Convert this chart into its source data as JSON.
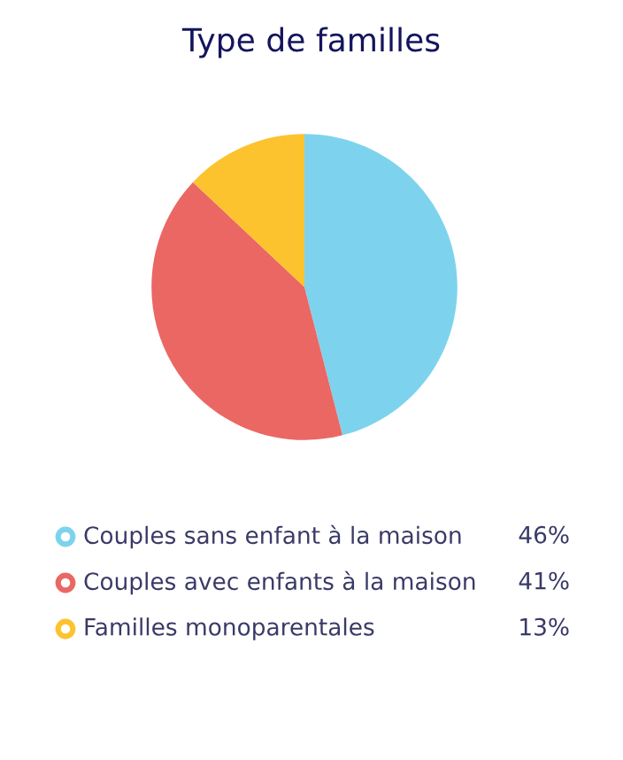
{
  "chart_data": {
    "type": "pie",
    "title": "Type de familles",
    "categories": [
      "Couples sans enfant à la maison",
      "Couples avec enfants à la maison",
      "Familles monoparentales"
    ],
    "values": [
      46,
      41,
      13
    ],
    "colors": [
      "#7dd3ee",
      "#ea6763",
      "#fdc32e"
    ],
    "value_labels": [
      "46%",
      "41%",
      "13%"
    ],
    "legend": "bottom"
  }
}
